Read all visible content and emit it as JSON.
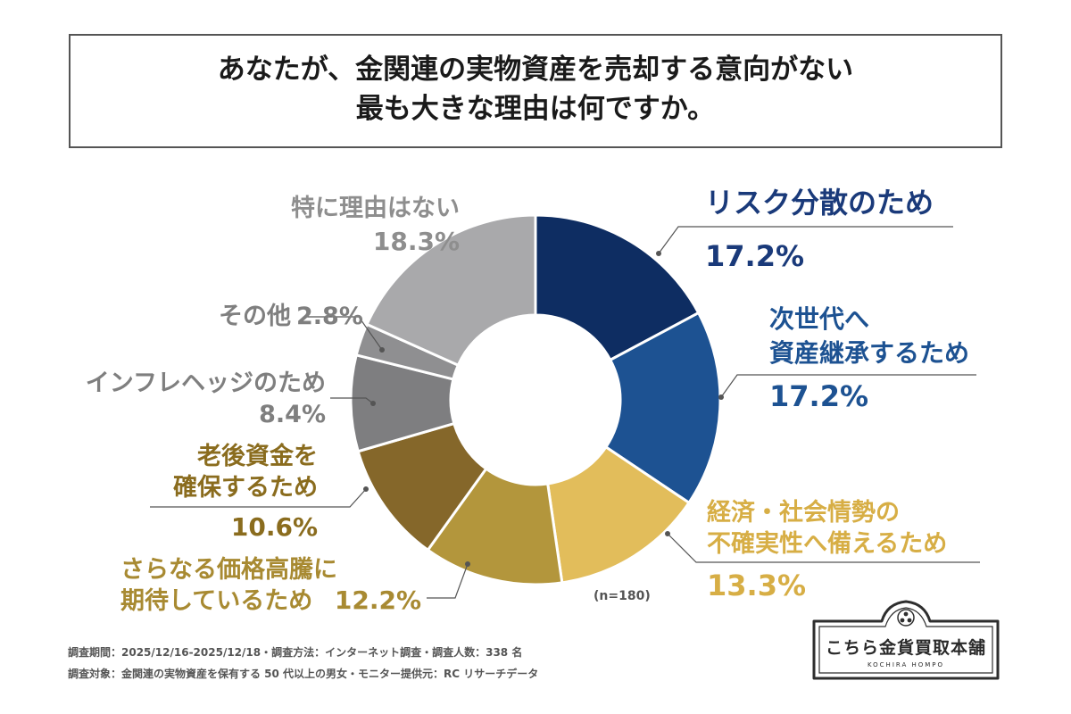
{
  "title": {
    "line1": "あなたが、金関連の実物資産を売却する意向がない",
    "line2": "最も大きな理由は何ですか。"
  },
  "chart_data": {
    "type": "pie",
    "donut": true,
    "n_label": "(n=180)",
    "slices": [
      {
        "label_lines": [
          "リスク分散のため"
        ],
        "value": 17.2,
        "value_label": "17.2%",
        "color": "#0e2d62",
        "text_color": "#1a3a7a"
      },
      {
        "label_lines": [
          "次世代へ",
          "資産継承するため"
        ],
        "value": 17.2,
        "value_label": "17.2%",
        "color": "#1d5292",
        "text_color": "#1d5292"
      },
      {
        "label_lines": [
          "経済・社会情勢の",
          "不確実性へ備えるため"
        ],
        "value": 13.3,
        "value_label": "13.3%",
        "color": "#e2bd5b",
        "text_color": "#d7ae45"
      },
      {
        "label_lines": [
          "さらなる価格高騰に",
          "期待しているため"
        ],
        "value": 12.2,
        "value_label": "12.2%",
        "color": "#b3963c",
        "text_color": "#a88a32"
      },
      {
        "label_lines": [
          "老後資金を",
          "確保するため"
        ],
        "value": 10.6,
        "value_label": "10.6%",
        "color": "#85672a",
        "text_color": "#8a6c1e"
      },
      {
        "label_lines": [
          "インフレヘッジのため"
        ],
        "value": 8.4,
        "value_label": "8.4%",
        "color": "#7e7e80",
        "text_color": "#7f7f7f"
      },
      {
        "label_lines": [
          "その他"
        ],
        "value": 2.8,
        "value_label": "2.8%",
        "color": "#8f8f91",
        "text_color": "#7f7f7f"
      },
      {
        "label_lines": [
          "特に理由はない"
        ],
        "value": 18.3,
        "value_label": "18.3%",
        "color": "#a9a9ab",
        "text_color": "#8e8e8e"
      }
    ]
  },
  "notes": {
    "line1": "調査期間：2025/12/16-2025/12/18・調査方法：インターネット調査・調査人数：338 名",
    "line2": "調査対象：金関連の実物資産を保有する 50 代以上の男女・モニター提供元：RC リサーチデータ"
  },
  "logo": {
    "name": "こちら金貨買取本舗",
    "sub": "KOCHIRA HOMPO"
  }
}
